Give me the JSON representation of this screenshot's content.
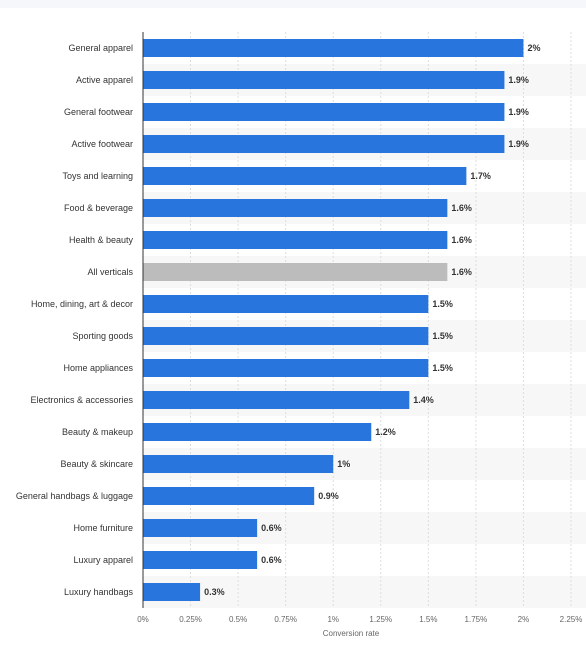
{
  "chart_data": {
    "type": "bar",
    "orientation": "horizontal",
    "title": "",
    "xlabel": "Conversion rate",
    "ylabel": "",
    "xlim": [
      0,
      2.25
    ],
    "x_ticks": [
      0,
      0.25,
      0.5,
      0.75,
      1,
      1.25,
      1.5,
      1.75,
      2,
      2.25
    ],
    "x_tick_labels": [
      "0%",
      "0.25%",
      "0.5%",
      "0.75%",
      "1%",
      "1.25%",
      "1.5%",
      "1.75%",
      "2%",
      "2.25%"
    ],
    "grid": true,
    "categories": [
      "General apparel",
      "Active apparel",
      "General footwear",
      "Active footwear",
      "Toys and learning",
      "Food & beverage",
      "Health & beauty",
      "All verticals",
      "Home, dining, art & decor",
      "Sporting goods",
      "Home appliances",
      "Electronics & accessories",
      "Beauty & makeup",
      "Beauty & skincare",
      "General handbags & luggage",
      "Home furniture",
      "Luxury apparel",
      "Luxury handbags"
    ],
    "values": [
      2,
      1.9,
      1.9,
      1.9,
      1.7,
      1.6,
      1.6,
      1.6,
      1.5,
      1.5,
      1.5,
      1.4,
      1.2,
      1,
      0.9,
      0.6,
      0.6,
      0.3
    ],
    "value_labels": [
      "2%",
      "1.9%",
      "1.9%",
      "1.9%",
      "1.7%",
      "1.6%",
      "1.6%",
      "1.6%",
      "1.5%",
      "1.5%",
      "1.5%",
      "1.4%",
      "1.2%",
      "1%",
      "0.9%",
      "0.6%",
      "0.6%",
      "0.3%"
    ],
    "highlight_category": "All verticals",
    "colors": {
      "bar": "#2876dd",
      "highlight": "#bcbcbc",
      "stripe": "#f7f7f7",
      "grid": "#dddddd",
      "axis": "#333333"
    }
  }
}
